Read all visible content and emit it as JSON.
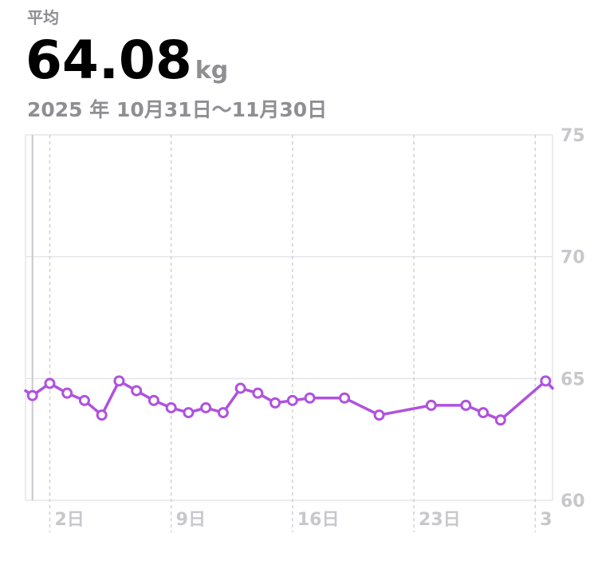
{
  "header": {
    "avg_label": "平均",
    "avg_value": "64.08",
    "avg_unit": "kg",
    "date_range": "2025 年 10月31日～11月30日"
  },
  "colors": {
    "line": "#af52de",
    "grid": "#e5e5ea",
    "tick_text": "#c7c7cc",
    "secondary_text": "#8e8e93"
  },
  "chart_data": {
    "type": "line",
    "ylim": [
      60,
      75
    ],
    "yticks": [
      "75",
      "70",
      "65",
      "60"
    ],
    "xlim": [
      0.6,
      31.0
    ],
    "xticks": [
      {
        "x": 2,
        "label": "2日"
      },
      {
        "x": 9,
        "label": "9日"
      },
      {
        "x": 16,
        "label": "16日"
      },
      {
        "x": 23,
        "label": "23日"
      },
      {
        "x": 30,
        "label": "3"
      }
    ],
    "grid": true,
    "selected_x": 1.0,
    "edge_start": {
      "x": 0.6,
      "y": 64.5
    },
    "edge_end": {
      "x": 31.0,
      "y": 64.6
    },
    "points": [
      {
        "x": 1,
        "y": 64.3
      },
      {
        "x": 2,
        "y": 64.8
      },
      {
        "x": 3,
        "y": 64.4
      },
      {
        "x": 4,
        "y": 64.1
      },
      {
        "x": 5,
        "y": 63.5
      },
      {
        "x": 6,
        "y": 64.9
      },
      {
        "x": 7,
        "y": 64.5
      },
      {
        "x": 8,
        "y": 64.1
      },
      {
        "x": 9,
        "y": 63.8
      },
      {
        "x": 10,
        "y": 63.6
      },
      {
        "x": 11,
        "y": 63.8
      },
      {
        "x": 12,
        "y": 63.6
      },
      {
        "x": 13,
        "y": 64.6
      },
      {
        "x": 14,
        "y": 64.4
      },
      {
        "x": 15,
        "y": 64.0
      },
      {
        "x": 16,
        "y": 64.1
      },
      {
        "x": 17,
        "y": 64.2
      },
      {
        "x": 19,
        "y": 64.2
      },
      {
        "x": 21,
        "y": 63.5
      },
      {
        "x": 24,
        "y": 63.9
      },
      {
        "x": 26,
        "y": 63.9
      },
      {
        "x": 27,
        "y": 63.6
      },
      {
        "x": 28,
        "y": 63.3
      },
      {
        "x": 30.6,
        "y": 64.9
      }
    ]
  }
}
